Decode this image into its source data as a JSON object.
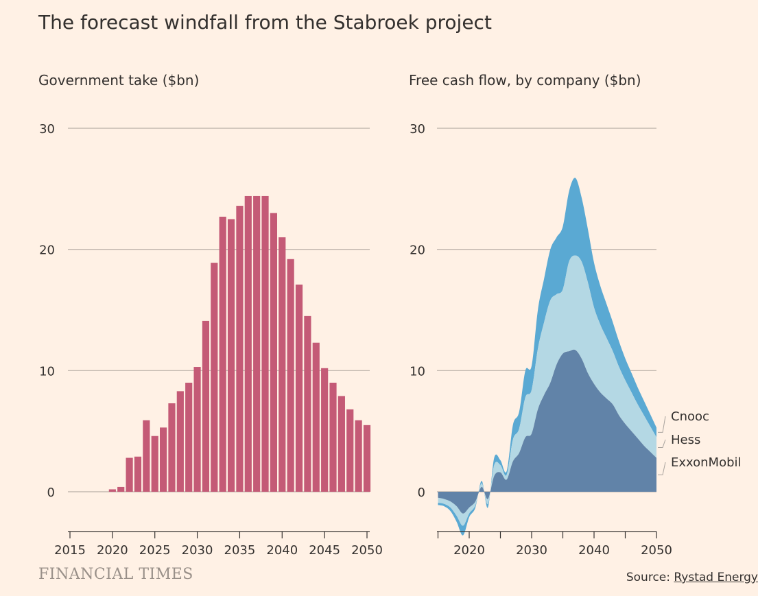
{
  "title": "The forecast windfall from the Stabroek project",
  "brand": "FINANCIAL TIMES",
  "source": {
    "prefix": "Source: ",
    "name": "Rystad Energy"
  },
  "colors": {
    "bars": "#c45a76",
    "exxon": "#6183a8",
    "hess": "#b4d8e4",
    "cnooc": "#5aa9d3",
    "grid": "#b9afa7",
    "text": "#33302e"
  },
  "chart_data": [
    {
      "type": "bar",
      "subtitle": "Government take ($bn)",
      "ylim": [
        -3,
        30
      ],
      "yticks": [
        0,
        10,
        20,
        30
      ],
      "xticks": [
        2015,
        2020,
        2025,
        2030,
        2035,
        2040,
        2045,
        2050
      ],
      "grid": true,
      "categories": [
        2020,
        2021,
        2022,
        2023,
        2024,
        2025,
        2026,
        2027,
        2028,
        2029,
        2030,
        2031,
        2032,
        2033,
        2034,
        2035,
        2036,
        2037,
        2038,
        2039,
        2040,
        2041,
        2042,
        2043,
        2044,
        2045,
        2046,
        2047,
        2048,
        2049,
        2050
      ],
      "values": [
        0.2,
        0.4,
        2.8,
        2.9,
        5.9,
        4.6,
        5.3,
        7.3,
        8.3,
        9.0,
        10.3,
        14.1,
        18.9,
        22.7,
        22.5,
        23.6,
        24.4,
        24.4,
        24.4,
        23.0,
        21.0,
        19.2,
        17.1,
        14.5,
        12.3,
        10.2,
        9.0,
        7.9,
        6.8,
        5.9,
        5.5
      ]
    },
    {
      "type": "area",
      "subtitle": "Free cash flow, by company ($bn)",
      "stacked": true,
      "ylim": [
        -3,
        30
      ],
      "yticks": [
        0,
        10,
        20,
        30
      ],
      "xticks": [
        2020,
        2030,
        2040,
        2050
      ],
      "grid": true,
      "legend": "right, inline labels",
      "x": [
        2015,
        2016,
        2017,
        2018,
        2019,
        2020,
        2021,
        2022,
        2023,
        2024,
        2025,
        2026,
        2027,
        2028,
        2029,
        2030,
        2031,
        2032,
        2033,
        2034,
        2035,
        2036,
        2037,
        2038,
        2039,
        2040,
        2041,
        2042,
        2043,
        2044,
        2045,
        2046,
        2047,
        2048,
        2049,
        2050
      ],
      "series": [
        {
          "name": "ExxonMobil",
          "values": [
            -0.5,
            -0.6,
            -0.8,
            -1.2,
            -1.8,
            -1.3,
            -0.8,
            0.4,
            -0.6,
            1.3,
            1.6,
            1.0,
            2.5,
            3.2,
            4.5,
            4.8,
            6.8,
            8.0,
            9.0,
            10.5,
            11.4,
            11.6,
            11.7,
            11.0,
            9.8,
            8.9,
            8.2,
            7.7,
            7.2,
            6.3,
            5.6,
            5.0,
            4.4,
            3.8,
            3.3,
            2.8
          ]
        },
        {
          "name": "Hess",
          "values": [
            -0.4,
            -0.4,
            -0.5,
            -0.8,
            -1.0,
            -0.5,
            -0.3,
            0.3,
            -0.4,
            0.9,
            0.6,
            0.4,
            1.8,
            2.0,
            3.3,
            3.6,
            5.0,
            6.0,
            6.8,
            5.8,
            5.3,
            7.4,
            7.8,
            8.0,
            7.5,
            6.3,
            5.6,
            5.0,
            4.4,
            4.0,
            3.6,
            3.2,
            2.8,
            2.5,
            2.1,
            1.7
          ]
        },
        {
          "name": "Cnooc",
          "values": [
            -0.2,
            -0.2,
            -0.3,
            -0.5,
            -0.8,
            -0.3,
            -0.2,
            0.2,
            -0.3,
            0.6,
            0.4,
            0.3,
            1.2,
            1.4,
            2.2,
            2.0,
            3.2,
            3.6,
            4.2,
            4.7,
            5.2,
            5.8,
            6.4,
            5.3,
            4.4,
            3.7,
            3.2,
            2.8,
            2.4,
            2.1,
            1.8,
            1.6,
            1.4,
            1.2,
            1.0,
            0.8
          ]
        }
      ]
    }
  ]
}
